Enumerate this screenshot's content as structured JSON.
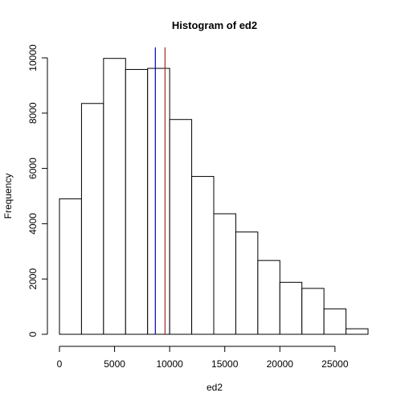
{
  "chart_data": {
    "type": "bar",
    "title": "Histogram of ed2",
    "xlabel": "ed2",
    "ylabel": "Frequency",
    "bins": [
      {
        "x0": 0,
        "x1": 2000,
        "value": 4900
      },
      {
        "x0": 2000,
        "x1": 4000,
        "value": 8350
      },
      {
        "x0": 4000,
        "x1": 6000,
        "value": 9980
      },
      {
        "x0": 6000,
        "x1": 8000,
        "value": 9580
      },
      {
        "x0": 8000,
        "x1": 10000,
        "value": 9620
      },
      {
        "x0": 10000,
        "x1": 12000,
        "value": 7770
      },
      {
        "x0": 12000,
        "x1": 14000,
        "value": 5710
      },
      {
        "x0": 14000,
        "x1": 16000,
        "value": 4360
      },
      {
        "x0": 16000,
        "x1": 18000,
        "value": 3700
      },
      {
        "x0": 18000,
        "x1": 20000,
        "value": 2670
      },
      {
        "x0": 20000,
        "x1": 22000,
        "value": 1880
      },
      {
        "x0": 22000,
        "x1": 24000,
        "value": 1660
      },
      {
        "x0": 24000,
        "x1": 26000,
        "value": 920
      },
      {
        "x0": 26000,
        "x1": 28000,
        "value": 200
      }
    ],
    "xticks": [
      0,
      5000,
      10000,
      15000,
      20000,
      25000
    ],
    "yticks": [
      0,
      2000,
      4000,
      6000,
      8000,
      10000
    ],
    "xlim": [
      0,
      28000
    ],
    "ylim": [
      0,
      10000
    ],
    "vlines": [
      {
        "x": 8700,
        "color": "#0000CD"
      },
      {
        "x": 9580,
        "color": "#A52A2A"
      }
    ],
    "grid": false,
    "bar_fill": "#ffffff",
    "bar_stroke": "#000000"
  }
}
